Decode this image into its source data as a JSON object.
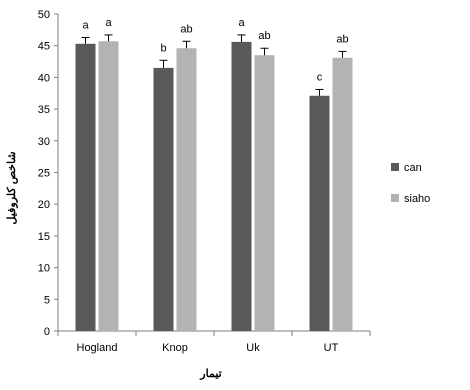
{
  "chart_data": {
    "type": "bar",
    "title": "",
    "xlabel": "تیمار",
    "ylabel": "شاخص کلروفیل",
    "ylim": [
      0,
      50
    ],
    "yticks": [
      0,
      5,
      10,
      15,
      20,
      25,
      30,
      35,
      40,
      45,
      50
    ],
    "grid": false,
    "legend_position": "right",
    "categories": [
      "Hogland",
      "Knop",
      "Uk",
      "UT"
    ],
    "series": [
      {
        "name": "can",
        "color": "#595959",
        "values": [
          45.3,
          41.5,
          45.6,
          37.1
        ],
        "errors": [
          1.0,
          1.2,
          1.1,
          1.0
        ],
        "labels": [
          "a",
          "b",
          "a",
          "c"
        ]
      },
      {
        "name": "siaho",
        "color": "#b3b3b3",
        "values": [
          45.7,
          44.6,
          43.5,
          43.1
        ],
        "errors": [
          1.0,
          1.1,
          1.1,
          1.0
        ],
        "labels": [
          "a",
          "ab",
          "ab",
          "ab"
        ]
      }
    ]
  }
}
